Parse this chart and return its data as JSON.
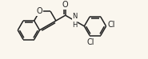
{
  "bg_color": "#faf6ee",
  "bond_color": "#222222",
  "line_width": 1.1,
  "font_size": 7.0,
  "figsize": [
    1.85,
    0.74
  ],
  "dpi": 100,
  "bl": 0.32,
  "xlim": [
    0.0,
    3.9
  ],
  "ylim": [
    0.15,
    1.85
  ]
}
